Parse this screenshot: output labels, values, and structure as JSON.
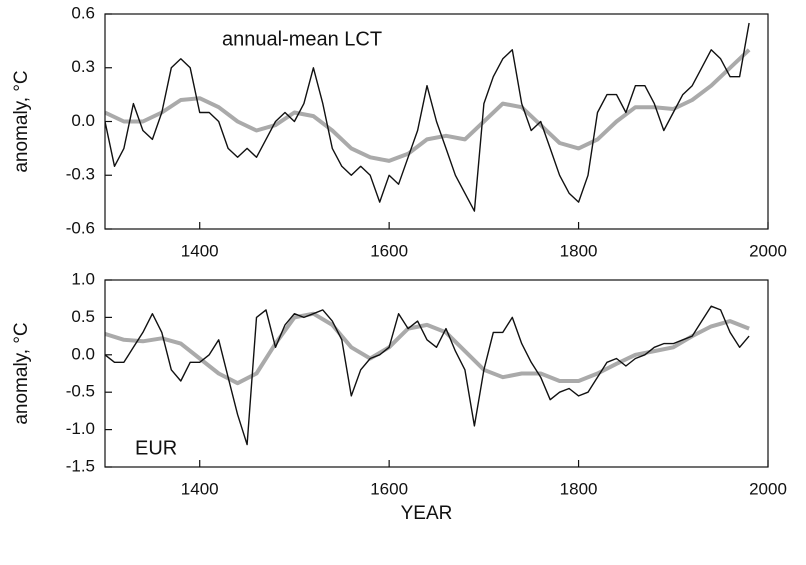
{
  "chart_data": [
    {
      "type": "line",
      "annotation": "annual-mean LCT",
      "ylabel": "anomaly, °C",
      "xlim": [
        1300,
        2000
      ],
      "xticks": [
        1400,
        1600,
        1800,
        2000
      ],
      "ylim": [
        -0.6,
        0.6
      ],
      "yticks": [
        -0.6,
        -0.3,
        {
          "value": 0,
          "label": "0.0"
        },
        0.3,
        0.6
      ],
      "series": [
        {
          "color": "#aaaaaa",
          "x": [
            1300,
            1320,
            1340,
            1360,
            1380,
            1400,
            1420,
            1440,
            1460,
            1480,
            1500,
            1520,
            1540,
            1560,
            1580,
            1600,
            1620,
            1640,
            1660,
            1680,
            1700,
            1720,
            1740,
            1760,
            1780,
            1800,
            1820,
            1840,
            1860,
            1880,
            1900,
            1920,
            1940,
            1960,
            1980
          ],
          "values": [
            0.05,
            0.0,
            0.0,
            0.05,
            0.12,
            0.13,
            0.08,
            0.0,
            -0.05,
            -0.02,
            0.05,
            0.03,
            -0.05,
            -0.15,
            -0.2,
            -0.22,
            -0.18,
            -0.1,
            -0.08,
            -0.1,
            0.0,
            0.1,
            0.08,
            -0.02,
            -0.12,
            -0.15,
            -0.1,
            0.0,
            0.08,
            0.08,
            0.07,
            0.12,
            0.2,
            0.3,
            0.4
          ]
        },
        {
          "color": "#111111",
          "x": [
            1300,
            1310,
            1320,
            1330,
            1340,
            1350,
            1360,
            1370,
            1380,
            1390,
            1400,
            1410,
            1420,
            1430,
            1440,
            1450,
            1460,
            1470,
            1480,
            1490,
            1500,
            1510,
            1520,
            1530,
            1540,
            1550,
            1560,
            1570,
            1580,
            1590,
            1600,
            1610,
            1620,
            1630,
            1640,
            1650,
            1660,
            1670,
            1680,
            1690,
            1700,
            1710,
            1720,
            1730,
            1740,
            1750,
            1760,
            1770,
            1780,
            1790,
            1800,
            1810,
            1820,
            1830,
            1840,
            1850,
            1860,
            1870,
            1880,
            1890,
            1900,
            1910,
            1920,
            1930,
            1940,
            1950,
            1960,
            1970,
            1980
          ],
          "values": [
            0.0,
            -0.25,
            -0.15,
            0.1,
            -0.05,
            -0.1,
            0.05,
            0.3,
            0.35,
            0.3,
            0.05,
            0.05,
            0.0,
            -0.15,
            -0.2,
            -0.15,
            -0.2,
            -0.1,
            0.0,
            0.05,
            0.0,
            0.1,
            0.3,
            0.1,
            -0.15,
            -0.25,
            -0.3,
            -0.25,
            -0.3,
            -0.45,
            -0.3,
            -0.35,
            -0.2,
            -0.05,
            0.2,
            0.0,
            -0.15,
            -0.3,
            -0.4,
            -0.5,
            0.1,
            0.25,
            0.35,
            0.4,
            0.1,
            -0.05,
            0.0,
            -0.15,
            -0.3,
            -0.4,
            -0.45,
            -0.3,
            0.05,
            0.15,
            0.15,
            0.05,
            0.2,
            0.2,
            0.1,
            -0.05,
            0.05,
            0.15,
            0.2,
            0.3,
            0.4,
            0.35,
            0.25,
            0.25,
            0.55
          ]
        }
      ]
    },
    {
      "type": "line",
      "annotation": "EUR",
      "ylabel": "anomaly, °C",
      "xlabel": "YEAR",
      "xlim": [
        1300,
        2000
      ],
      "xticks": [
        1400,
        1600,
        1800,
        2000
      ],
      "ylim": [
        -1.5,
        1.0
      ],
      "yticks": [
        -1.5,
        {
          "value": -1,
          "label": "-1.0"
        },
        -0.5,
        {
          "value": 0,
          "label": "0.0"
        },
        0.5,
        {
          "value": 1,
          "label": "1.0"
        }
      ],
      "series": [
        {
          "color": "#aaaaaa",
          "x": [
            1300,
            1320,
            1340,
            1360,
            1380,
            1400,
            1420,
            1440,
            1460,
            1480,
            1500,
            1520,
            1540,
            1560,
            1580,
            1600,
            1620,
            1640,
            1660,
            1680,
            1700,
            1720,
            1740,
            1760,
            1780,
            1800,
            1820,
            1840,
            1860,
            1880,
            1900,
            1920,
            1940,
            1960,
            1980
          ],
          "values": [
            0.28,
            0.2,
            0.18,
            0.22,
            0.15,
            -0.05,
            -0.25,
            -0.38,
            -0.25,
            0.15,
            0.5,
            0.55,
            0.4,
            0.1,
            -0.05,
            0.1,
            0.35,
            0.4,
            0.3,
            0.05,
            -0.2,
            -0.3,
            -0.25,
            -0.25,
            -0.35,
            -0.35,
            -0.25,
            -0.12,
            0.0,
            0.05,
            0.1,
            0.25,
            0.38,
            0.45,
            0.35
          ]
        },
        {
          "color": "#111111",
          "x": [
            1300,
            1310,
            1320,
            1330,
            1340,
            1350,
            1360,
            1370,
            1380,
            1390,
            1400,
            1410,
            1420,
            1430,
            1440,
            1450,
            1460,
            1470,
            1480,
            1490,
            1500,
            1510,
            1520,
            1530,
            1540,
            1550,
            1560,
            1570,
            1580,
            1590,
            1600,
            1610,
            1620,
            1630,
            1640,
            1650,
            1660,
            1670,
            1680,
            1690,
            1700,
            1710,
            1720,
            1730,
            1740,
            1750,
            1760,
            1770,
            1780,
            1790,
            1800,
            1810,
            1820,
            1830,
            1840,
            1850,
            1860,
            1870,
            1880,
            1890,
            1900,
            1910,
            1920,
            1930,
            1940,
            1950,
            1960,
            1970,
            1980
          ],
          "values": [
            0.0,
            -0.1,
            -0.1,
            0.1,
            0.3,
            0.55,
            0.3,
            -0.2,
            -0.35,
            -0.1,
            -0.1,
            0.0,
            0.2,
            -0.3,
            -0.8,
            -1.2,
            0.5,
            0.6,
            0.1,
            0.4,
            0.55,
            0.5,
            0.55,
            0.6,
            0.45,
            0.2,
            -0.55,
            -0.2,
            -0.05,
            0.0,
            0.1,
            0.55,
            0.35,
            0.45,
            0.2,
            0.1,
            0.35,
            0.05,
            -0.2,
            -0.95,
            -0.2,
            0.3,
            0.3,
            0.5,
            0.15,
            -0.1,
            -0.3,
            -0.6,
            -0.5,
            -0.45,
            -0.55,
            -0.5,
            -0.3,
            -0.1,
            -0.05,
            -0.15,
            -0.05,
            0.0,
            0.1,
            0.15,
            0.15,
            0.2,
            0.25,
            0.45,
            0.65,
            0.6,
            0.3,
            0.1,
            0.25
          ]
        }
      ]
    }
  ]
}
